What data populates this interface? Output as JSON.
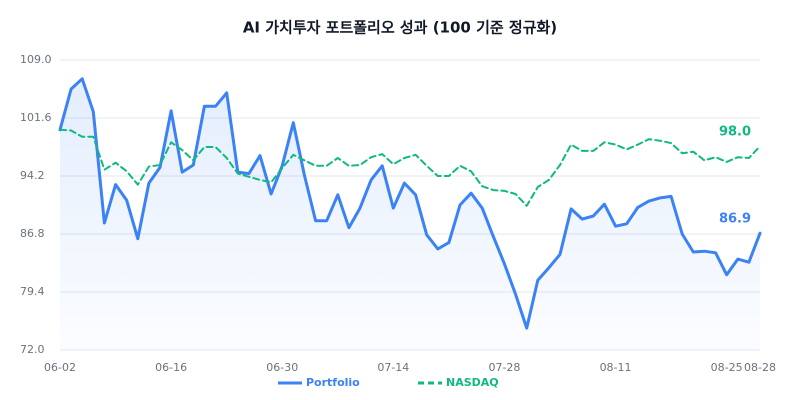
{
  "chart_data": {
    "type": "line",
    "title": "AI 가치투자 포트폴리오 성과 (100 기준 정규화)",
    "categories": [
      "06-02",
      null,
      null,
      null,
      null,
      null,
      null,
      null,
      null,
      null,
      "06-16",
      null,
      null,
      null,
      null,
      null,
      null,
      null,
      null,
      null,
      "06-30",
      null,
      null,
      null,
      null,
      null,
      null,
      null,
      null,
      null,
      "07-14",
      null,
      null,
      null,
      null,
      null,
      null,
      null,
      null,
      null,
      "07-28",
      null,
      null,
      null,
      null,
      null,
      null,
      null,
      null,
      null,
      "08-11",
      null,
      null,
      null,
      null,
      null,
      null,
      null,
      null,
      null,
      "08-25",
      null,
      null,
      "08-28"
    ],
    "series": [
      {
        "name": "Portfolio",
        "color": "#3b82f6",
        "dashed": false,
        "area": true,
        "values": [
          100.1,
          105.3,
          106.6,
          102.4,
          88.2,
          93.1,
          91.1,
          86.2,
          93.3,
          95.3,
          102.5,
          94.7,
          95.6,
          103.1,
          103.1,
          104.8,
          94.7,
          94.5,
          96.8,
          91.9,
          95.5,
          101.0,
          94.3,
          88.5,
          88.5,
          91.8,
          87.6,
          90.1,
          93.7,
          95.5,
          90.1,
          93.3,
          91.8,
          86.7,
          84.9,
          85.7,
          90.5,
          92.0,
          90.1,
          86.5,
          83.0,
          79.1,
          74.8,
          80.9,
          82.5,
          84.2,
          90.0,
          88.7,
          89.1,
          90.6,
          87.8,
          88.1,
          90.2,
          91.0,
          91.4,
          91.6,
          86.8,
          84.5,
          84.6,
          84.4,
          81.6,
          83.6,
          83.2,
          86.9
        ],
        "value_labels": [
          null,
          null,
          null,
          null,
          null,
          null,
          null,
          null,
          null,
          null,
          null,
          null,
          null,
          null,
          null,
          null,
          null,
          null,
          null,
          null,
          null,
          null,
          null,
          null,
          null,
          null,
          null,
          null,
          null,
          null,
          null,
          null,
          null,
          null,
          null,
          null,
          null,
          null,
          null,
          null,
          null,
          null,
          null,
          null,
          null,
          null,
          null,
          null,
          null,
          null,
          null,
          null,
          null,
          null,
          null,
          null,
          null,
          null,
          null,
          null,
          null,
          null,
          null,
          "86.9"
        ]
      },
      {
        "name": "NASDAQ",
        "color": "#10b981",
        "dashed": true,
        "area": false,
        "values": [
          100.1,
          100.0,
          99.2,
          99.2,
          95.0,
          95.9,
          94.8,
          93.1,
          95.4,
          95.6,
          98.5,
          97.5,
          96.2,
          97.9,
          97.9,
          96.5,
          94.5,
          94.1,
          93.7,
          93.4,
          95.2,
          96.9,
          96.2,
          95.5,
          95.5,
          96.5,
          95.5,
          95.6,
          96.6,
          97.0,
          95.7,
          96.5,
          96.9,
          95.5,
          94.2,
          94.2,
          95.5,
          94.8,
          92.9,
          92.4,
          92.3,
          91.9,
          90.4,
          92.8,
          93.7,
          95.6,
          98.2,
          97.4,
          97.4,
          98.5,
          98.2,
          97.6,
          98.2,
          98.9,
          98.7,
          98.4,
          97.1,
          97.3,
          96.2,
          96.6,
          96.0,
          96.6,
          96.5,
          98.0
        ],
        "value_labels": [
          null,
          null,
          null,
          null,
          null,
          null,
          null,
          null,
          null,
          null,
          null,
          null,
          null,
          null,
          null,
          null,
          null,
          null,
          null,
          null,
          null,
          null,
          null,
          null,
          null,
          null,
          null,
          null,
          null,
          null,
          null,
          null,
          null,
          null,
          null,
          null,
          null,
          null,
          null,
          null,
          null,
          null,
          null,
          null,
          null,
          null,
          null,
          null,
          null,
          null,
          null,
          null,
          null,
          null,
          null,
          null,
          null,
          null,
          null,
          null,
          null,
          null,
          null,
          "98.0"
        ]
      }
    ],
    "ylim": [
      72,
      109
    ],
    "yticks": [
      {
        "value": 72,
        "label": "72.0"
      },
      79.4,
      86.8,
      94.2,
      101.6,
      {
        "value": 109,
        "label": "109.0"
      }
    ],
    "grid": true,
    "legend": "bottom"
  }
}
